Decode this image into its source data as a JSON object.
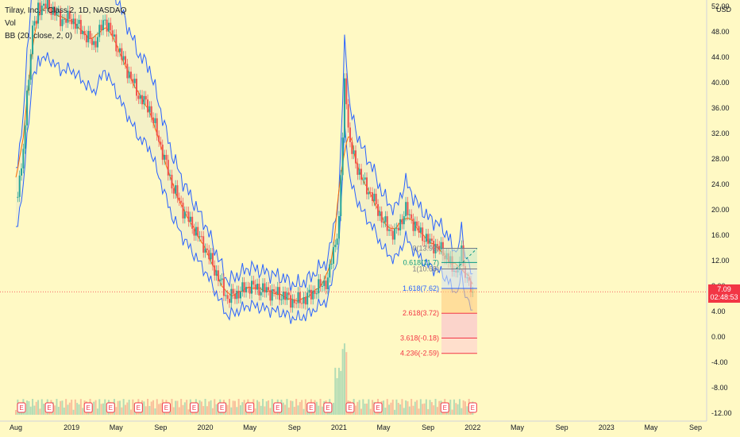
{
  "legend": {
    "title": "Tilray, Inc. - Class 2, 1D, NASDAQ",
    "vol": "Vol",
    "bb": "BB (20, close, 2, 0)"
  },
  "currency": "USD",
  "last_price": {
    "value": "7.09",
    "countdown": "02:48:53"
  },
  "colors": {
    "background": "#fff9c4",
    "candle_up": "#26a69a",
    "candle_down": "#ef5350",
    "bb_band": "#2962ff",
    "bb_basis": "#ff6d00",
    "price_line": "#f23645"
  },
  "chart_data": {
    "type": "candlestick",
    "y_axis": {
      "range": [
        -12,
        52
      ],
      "ticks": [
        -12,
        -8,
        -4,
        0,
        4,
        8,
        12,
        16,
        20,
        24,
        28,
        32,
        36,
        40,
        44,
        48,
        52
      ]
    },
    "x_axis": {
      "ticks": [
        {
          "label": "Aug",
          "t": 0
        },
        {
          "label": "2019",
          "t": 5
        },
        {
          "label": "May",
          "t": 9
        },
        {
          "label": "Sep",
          "t": 13
        },
        {
          "label": "2020",
          "t": 17
        },
        {
          "label": "May",
          "t": 21
        },
        {
          "label": "Sep",
          "t": 25
        },
        {
          "label": "2021",
          "t": 29
        },
        {
          "label": "May",
          "t": 33
        },
        {
          "label": "Sep",
          "t": 37
        },
        {
          "label": "2022",
          "t": 41
        },
        {
          "label": "May",
          "t": 45
        },
        {
          "label": "Sep",
          "t": 49
        },
        {
          "label": "2023",
          "t": 53
        },
        {
          "label": "May",
          "t": 57
        },
        {
          "label": "Sep",
          "t": 61
        }
      ]
    },
    "price_series": [
      {
        "t": 0,
        "c": 22
      },
      {
        "t": 0.5,
        "c": 26
      },
      {
        "t": 1,
        "c": 38
      },
      {
        "t": 1.5,
        "c": 48
      },
      {
        "t": 2,
        "c": 52
      },
      {
        "t": 3,
        "c": 52
      },
      {
        "t": 4,
        "c": 50
      },
      {
        "t": 5,
        "c": 50
      },
      {
        "t": 6,
        "c": 48
      },
      {
        "t": 7,
        "c": 46
      },
      {
        "t": 8,
        "c": 50
      },
      {
        "t": 9,
        "c": 46
      },
      {
        "t": 10,
        "c": 42
      },
      {
        "t": 11,
        "c": 38
      },
      {
        "t": 12,
        "c": 36
      },
      {
        "t": 13,
        "c": 30
      },
      {
        "t": 14,
        "c": 24
      },
      {
        "t": 15,
        "c": 20
      },
      {
        "t": 16,
        "c": 17
      },
      {
        "t": 17,
        "c": 14
      },
      {
        "t": 18,
        "c": 10
      },
      {
        "t": 19,
        "c": 6
      },
      {
        "t": 20,
        "c": 7
      },
      {
        "t": 21,
        "c": 8
      },
      {
        "t": 22,
        "c": 7.5
      },
      {
        "t": 23,
        "c": 7
      },
      {
        "t": 24,
        "c": 6.5
      },
      {
        "t": 25,
        "c": 5.5
      },
      {
        "t": 26,
        "c": 6
      },
      {
        "t": 27,
        "c": 7.5
      },
      {
        "t": 28,
        "c": 9
      },
      {
        "t": 29,
        "c": 18
      },
      {
        "t": 29.5,
        "c": 40
      },
      {
        "t": 30,
        "c": 30
      },
      {
        "t": 31,
        "c": 25
      },
      {
        "t": 32,
        "c": 22
      },
      {
        "t": 33,
        "c": 18
      },
      {
        "t": 34,
        "c": 16
      },
      {
        "t": 35,
        "c": 20
      },
      {
        "t": 36,
        "c": 17
      },
      {
        "t": 37,
        "c": 15
      },
      {
        "t": 38,
        "c": 14
      },
      {
        "t": 39,
        "c": 12
      },
      {
        "t": 39.5,
        "c": 10
      },
      {
        "t": 40,
        "c": 13
      },
      {
        "t": 40.5,
        "c": 9
      },
      {
        "t": 41,
        "c": 7.09
      }
    ],
    "vol_earnings_markers": [
      {
        "t": 0.5,
        "label": "E"
      },
      {
        "t": 3,
        "label": "E"
      },
      {
        "t": 6.5,
        "label": "E"
      },
      {
        "t": 8.5,
        "label": "E"
      },
      {
        "t": 11,
        "label": "E"
      },
      {
        "t": 13.5,
        "label": "E"
      },
      {
        "t": 16,
        "label": "E"
      },
      {
        "t": 18.5,
        "label": "E"
      },
      {
        "t": 21,
        "label": "E"
      },
      {
        "t": 23.5,
        "label": "E"
      },
      {
        "t": 26.5,
        "label": "E"
      },
      {
        "t": 28,
        "label": "E"
      },
      {
        "t": 30,
        "label": "E"
      },
      {
        "t": 32.5,
        "label": "E"
      },
      {
        "t": 38.5,
        "label": "E"
      },
      {
        "t": 41,
        "label": "E"
      }
    ],
    "fibonacci": [
      {
        "level": "0(13.93)",
        "price": 13.93,
        "color": "#787b86"
      },
      {
        "level": "0.618(11.7)",
        "price": 11.7,
        "color": "#089981"
      },
      {
        "level": "1(10.68)",
        "price": 10.68,
        "color": "#787b86"
      },
      {
        "level": "1.618(7.62)",
        "price": 7.62,
        "color": "#2962ff"
      },
      {
        "level": "2.618(3.72)",
        "price": 3.72,
        "color": "#f23645"
      },
      {
        "level": "3.618(-0.18)",
        "price": -0.18,
        "color": "#f23645"
      },
      {
        "level": "4.236(-2.59)",
        "price": -2.59,
        "color": "#f23645"
      }
    ]
  }
}
